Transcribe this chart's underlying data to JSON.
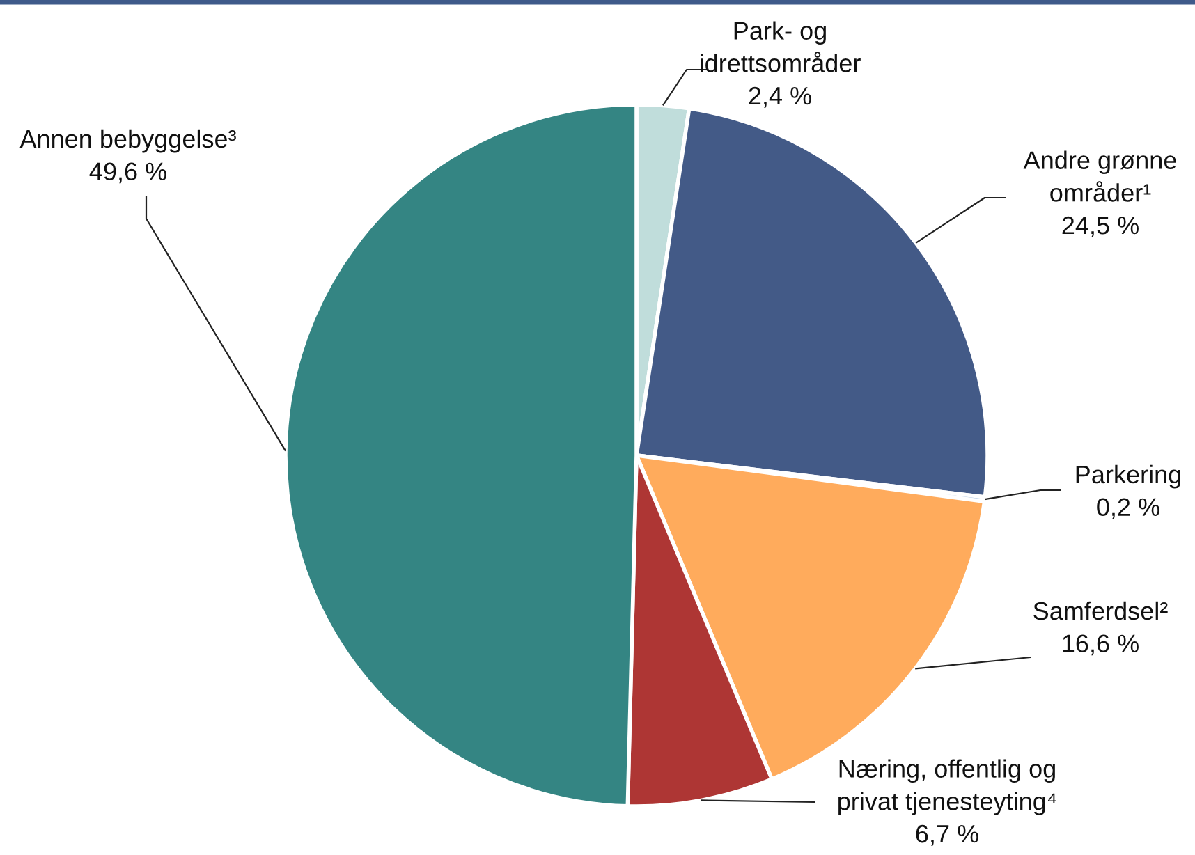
{
  "chart_data": {
    "type": "pie",
    "categories": [
      "Park- og\nidrettsområder",
      "Andre grønne\nområder¹",
      "Parkering",
      "Samferdsel²",
      "Næring, offentlig og\nprivat tjenesteyting⁴",
      "Annen bebyggelse³"
    ],
    "values": [
      2.4,
      24.5,
      0.2,
      16.6,
      6.7,
      49.6
    ],
    "colors": [
      "#c0dddb",
      "#435a87",
      "#a9c3e1",
      "#ffab5c",
      "#ae3634",
      "#348583"
    ],
    "value_labels": [
      "2,4 %",
      "24,5 %",
      "0,2 %",
      "16,6 %",
      "6,7 %",
      "49,6 %"
    ]
  }
}
